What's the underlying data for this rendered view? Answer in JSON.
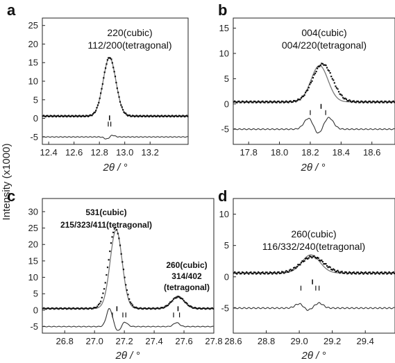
{
  "figure": {
    "ylabel": "Intensity (x1000)"
  },
  "chart_data": [
    {
      "panel": "a",
      "type": "line",
      "xlabel": "2θ / °",
      "xlim": [
        12.35,
        13.5
      ],
      "ylim": [
        -7,
        27
      ],
      "xticks": [
        12.4,
        12.6,
        12.8,
        13.0,
        13.2
      ],
      "xtick_labels": [
        "12.4",
        "12.6",
        "12.8",
        "13.0",
        "13.2"
      ],
      "yticks": [
        -5,
        0,
        5,
        10,
        15,
        20,
        25
      ],
      "ytick_labels": [
        "-5",
        "0",
        "5",
        "10",
        "15",
        "20",
        "25"
      ],
      "annotations": [
        "220(cubic)",
        "112/200(tetragonal)"
      ],
      "peaks": [
        {
          "center": 12.88,
          "height": 15.8,
          "width": 0.05
        }
      ],
      "fit_peaks": [
        {
          "center": 12.88,
          "height": 15.8,
          "width": 0.05
        }
      ],
      "baseline": 0.6,
      "difference": {
        "offset": -5,
        "features": [
          {
            "center": 12.86,
            "amp": -0.6,
            "width": 0.02
          },
          {
            "center": 12.9,
            "amp": 0.5,
            "width": 0.02
          }
        ]
      },
      "reflection_ticks": [
        12.87,
        12.89
      ],
      "raised_ticks": [
        12.88
      ]
    },
    {
      "panel": "b",
      "type": "line",
      "xlabel": "2θ / °",
      "xlim": [
        17.7,
        18.75
      ],
      "ylim": [
        -8,
        17
      ],
      "xticks": [
        17.8,
        18.0,
        18.2,
        18.4,
        18.6
      ],
      "xtick_labels": [
        "17.8",
        "18.0",
        "18.2",
        "18.4",
        "18.6"
      ],
      "yticks": [
        -5,
        0,
        5,
        10,
        15
      ],
      "ytick_labels": [
        "-5",
        "0",
        "5",
        "10",
        "15"
      ],
      "annotations": [
        "004(cubic)",
        "004/220(tetragonal)"
      ],
      "peaks": [
        {
          "center": 18.28,
          "height": 7.5,
          "width": 0.065
        }
      ],
      "fit_peaks": [
        {
          "center": 18.26,
          "height": 7.2,
          "width": 0.055
        }
      ],
      "baseline": 0.4,
      "difference": {
        "offset": -5,
        "features": [
          {
            "center": 18.19,
            "amp": 2.2,
            "width": 0.03
          },
          {
            "center": 18.25,
            "amp": -1.2,
            "width": 0.025
          },
          {
            "center": 18.32,
            "amp": 2.3,
            "width": 0.03
          }
        ]
      },
      "reflection_ticks": [
        18.2,
        18.3
      ],
      "raised_ticks": [
        18.27
      ]
    },
    {
      "panel": "c",
      "type": "line",
      "xlabel": "2θ / °",
      "xlim": [
        26.65,
        27.8
      ],
      "ylim": [
        -7,
        34
      ],
      "xticks": [
        26.8,
        27.0,
        27.2,
        27.4,
        27.6,
        27.8
      ],
      "xtick_labels": [
        "26.8",
        "27.0",
        "27.2",
        "27.4",
        "27.6",
        "27.8"
      ],
      "yticks": [
        -5,
        0,
        5,
        10,
        15,
        20,
        25,
        30
      ],
      "ytick_labels": [
        "-5",
        "0",
        "5",
        "10",
        "15",
        "20",
        "25",
        "30"
      ],
      "annotations": [
        "531(cubic)",
        "215/323/411(tetragonal)",
        "260(cubic)",
        "314/402",
        "(tetragonal)"
      ],
      "peaks": [
        {
          "center": 27.14,
          "height": 24.5,
          "width": 0.045
        },
        {
          "center": 27.56,
          "height": 3.5,
          "width": 0.045
        }
      ],
      "fit_peaks": [
        {
          "center": 27.145,
          "height": 24.0,
          "width": 0.04
        },
        {
          "center": 27.56,
          "height": 3.8,
          "width": 0.04
        }
      ],
      "baseline": 0.5,
      "difference": {
        "offset": -5,
        "features": [
          {
            "center": 27.1,
            "amp": 5.5,
            "width": 0.02
          },
          {
            "center": 27.16,
            "amp": -1.5,
            "width": 0.02
          },
          {
            "center": 27.2,
            "amp": 1.5,
            "width": 0.02
          },
          {
            "center": 27.55,
            "amp": 1.2,
            "width": 0.02
          }
        ]
      },
      "reflection_ticks": [
        27.12,
        27.19,
        27.21,
        27.53,
        27.57
      ],
      "raised_ticks": [
        27.15,
        27.56
      ]
    },
    {
      "panel": "d",
      "type": "line",
      "xlabel": "2θ / °",
      "xlim": [
        28.6,
        29.58
      ],
      "ylim": [
        -9,
        12.5
      ],
      "xticks": [
        28.6,
        28.8,
        29.0,
        29.2,
        29.4
      ],
      "xtick_labels": [
        "28.6",
        "28.8",
        "29.0",
        "29.2",
        "29.4"
      ],
      "yticks": [
        -5,
        0,
        5,
        10
      ],
      "ytick_labels": [
        "-5",
        "0",
        "5",
        "10"
      ],
      "annotations": [
        "260(cubic)",
        "116/332/240(tetragonal)"
      ],
      "peaks": [
        {
          "center": 29.08,
          "height": 2.6,
          "width": 0.07
        }
      ],
      "fit_peaks": [
        {
          "center": 29.07,
          "height": 2.9,
          "width": 0.055
        }
      ],
      "baseline": 0.6,
      "difference": {
        "offset": -5,
        "features": [
          {
            "center": 29.0,
            "amp": 0.7,
            "width": 0.025
          },
          {
            "center": 29.05,
            "amp": -0.4,
            "width": 0.02
          },
          {
            "center": 29.12,
            "amp": 0.8,
            "width": 0.025
          }
        ]
      },
      "reflection_ticks": [
        29.01,
        29.1,
        29.12
      ],
      "raised_ticks": [
        29.08
      ]
    }
  ]
}
